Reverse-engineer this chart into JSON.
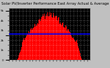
{
  "title": "Solar PV/Inverter Performance East Array Actual & Average Power Output",
  "bg_color": "#c0c0c0",
  "plot_bg_color": "#000000",
  "bar_color": "#ff0000",
  "avg_line_color": "#0000ff",
  "avg_line_value": 0.52,
  "grid_color": "#ffffff",
  "grid_style": ":",
  "ylim": [
    0,
    1.05
  ],
  "xlim": [
    0,
    287
  ],
  "num_points": 288,
  "title_fontsize": 3.8,
  "tick_fontsize": 3.0,
  "ytick_labels": [
    "0",
    "",
    "1k",
    "",
    "2k",
    "",
    "3k",
    "",
    "4k",
    "",
    "5k"
  ],
  "ytick_positions": [
    0.0,
    0.1,
    0.2,
    0.3,
    0.4,
    0.5,
    0.6,
    0.7,
    0.8,
    0.9,
    1.0
  ],
  "figsize": [
    1.6,
    1.0
  ],
  "dpi": 100
}
